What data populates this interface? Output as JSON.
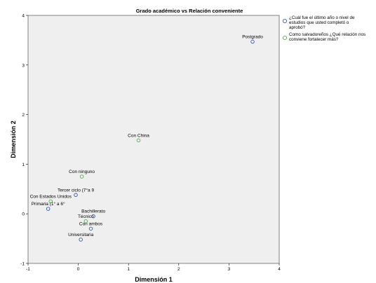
{
  "chart_data": {
    "type": "scatter",
    "title": "Grado académico vs Relación conveniente",
    "xlabel": "Dimensión 1",
    "ylabel": "Dimensión 2",
    "xlim": [
      -1,
      4
    ],
    "ylim": [
      -1,
      4
    ],
    "xticks": [
      "-1",
      "0",
      "1",
      "2",
      "3",
      "4"
    ],
    "yticks": [
      "-1",
      "0",
      "1",
      "2",
      "3",
      "4"
    ],
    "grid": false,
    "legend_position": "right",
    "series": [
      {
        "name_lines": [
          "¿Cuál fue el último año o nivel de",
          "estudios que usted completó o",
          "aprobó?"
        ],
        "color": "#3e5aa8",
        "points": [
          {
            "label": "Postgrado",
            "x": 3.47,
            "y": 3.47
          },
          {
            "label": "Tercer ciclo (7°a 9",
            "x": -0.05,
            "y": 0.38
          },
          {
            "label": "Primaria (1° a 6°",
            "x": -0.6,
            "y": 0.1
          },
          {
            "label": "Bachillerato",
            "x": 0.3,
            "y": -0.05
          },
          {
            "label": "Con ambos",
            "x": 0.25,
            "y": -0.3
          },
          {
            "label": "Universitaria",
            "x": 0.05,
            "y": -0.52
          }
        ]
      },
      {
        "name_lines": [
          "Como salvadoreños ¿Qué relación nos",
          "conviene fortalecer más?"
        ],
        "color": "#55b050",
        "points": [
          {
            "label": "Con China",
            "x": 1.2,
            "y": 1.48
          },
          {
            "label": "Con ninguno",
            "x": 0.07,
            "y": 0.75
          },
          {
            "label": "Con Estados Unidos",
            "x": -0.55,
            "y": 0.25
          },
          {
            "label": "Técnico",
            "x": 0.15,
            "y": -0.15
          }
        ]
      }
    ]
  }
}
